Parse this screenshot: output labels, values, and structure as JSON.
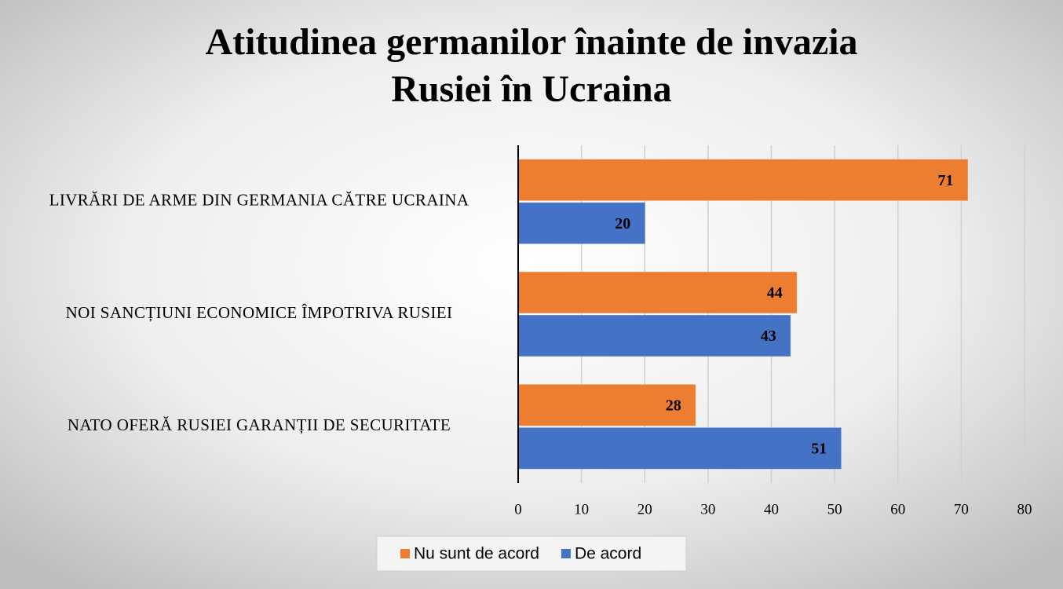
{
  "chart_data": {
    "type": "bar",
    "orientation": "horizontal",
    "title": [
      "Atitudinea germanilor înainte de invazia",
      "Rusiei în Ucraina"
    ],
    "categories": [
      "LIVRĂRI DE ARME DIN GERMANIA CĂTRE UCRAINA",
      "NOI SANCȚIUNI ECONOMICE ÎMPOTRIVA RUSIEI",
      "NATO OFERĂ RUSIEI GARANȚII DE SECURITATE"
    ],
    "series": [
      {
        "name": "Nu sunt de acord",
        "color": "#ed7d31",
        "values": [
          71,
          44,
          28
        ]
      },
      {
        "name": "De acord",
        "color": "#4472c4",
        "values": [
          20,
          43,
          51
        ]
      }
    ],
    "xlim": [
      0,
      80
    ],
    "xticks": [
      0,
      10,
      20,
      30,
      40,
      50,
      60,
      70,
      80
    ],
    "grid": true,
    "legend": "bottom"
  }
}
